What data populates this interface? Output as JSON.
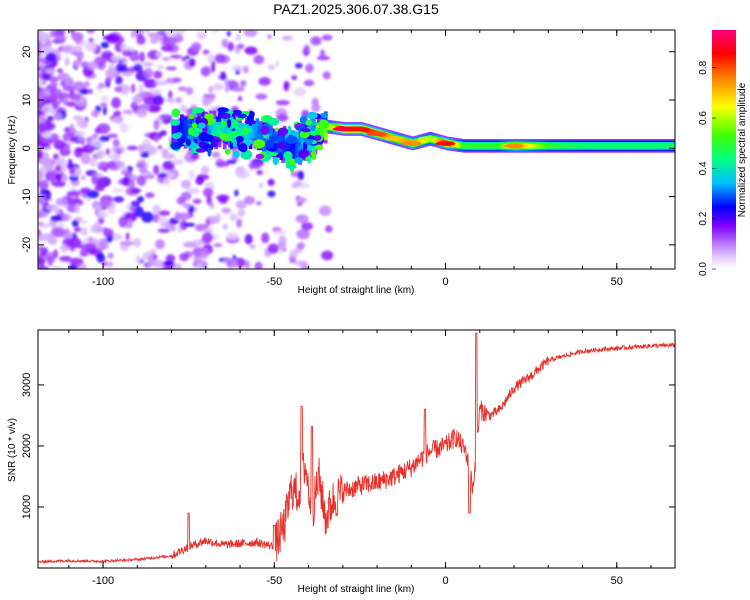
{
  "title": "PAZ1.2025.306.07.38.G15",
  "chart_data": [
    {
      "type": "heatmap",
      "xlabel": "Height of straight line (km)",
      "ylabel": "Frequency (Hz)",
      "xlim": [
        -119,
        67
      ],
      "ylim": [
        -25,
        24.5
      ],
      "xticks": [
        -100,
        -50,
        0,
        50
      ],
      "xtick_labels": [
        "-100",
        "-50",
        "0",
        "50"
      ],
      "yticks": [
        -20,
        -10,
        0,
        10,
        20
      ],
      "ytick_labels": [
        "-20",
        "-10",
        "0",
        "10",
        "20"
      ],
      "colorbar": {
        "label": "Normalized spectral amplitude",
        "range": [
          0,
          0.95
        ],
        "ticks": [
          0,
          0.2,
          0.4,
          0.6,
          0.8
        ],
        "tick_labels": [
          "0.0",
          "0.2",
          "0.4",
          "0.6",
          "0.8"
        ],
        "colors": [
          "#ffffff",
          "#c080ff",
          "#8000ff",
          "#0000ff",
          "#00c0ff",
          "#00ff80",
          "#40ff00",
          "#ffff00",
          "#ff8000",
          "#ff0000",
          "#ff0080"
        ]
      },
      "ridge": {
        "x": [
          -80,
          -75,
          -70,
          -65,
          -60,
          -55,
          -50,
          -45,
          -40,
          -35,
          -30,
          -25,
          -20,
          -15,
          -10,
          -5,
          0,
          5,
          10,
          15,
          20,
          30,
          40,
          50,
          60,
          67
        ],
        "freq": [
          3,
          3.5,
          3.5,
          4,
          3,
          3,
          1.5,
          0,
          2,
          4.5,
          4,
          4,
          3,
          2,
          1,
          2,
          1,
          0.5,
          0.5,
          0.5,
          0.5,
          0.5,
          0.5,
          0.5,
          0.5,
          0.5
        ],
        "peak_amplitude": [
          0.2,
          0.3,
          0.3,
          0.5,
          0.4,
          0.3,
          0.3,
          0.25,
          0.4,
          0.6,
          0.9,
          0.85,
          0.8,
          0.7,
          0.75,
          0.6,
          0.85,
          0.5,
          0.5,
          0.5,
          0.75,
          0.5,
          0.45,
          0.45,
          0.45,
          0.45
        ]
      },
      "noise_region": "x from -119 to -40 km: scattered low-amplitude (0.05-0.25) speckle across all frequencies"
    },
    {
      "type": "line",
      "xlabel": "Height of straight line (km)",
      "ylabel": "SNR (10 * v/v)",
      "xlim": [
        -119,
        67
      ],
      "ylim": [
        0,
        3900
      ],
      "xticks": [
        -100,
        -50,
        0,
        50
      ],
      "xtick_labels": [
        "-100",
        "-50",
        "0",
        "50"
      ],
      "yticks": [
        1000,
        2000,
        3000
      ],
      "ytick_labels": [
        "1000",
        "2000",
        "3000"
      ],
      "color": "#e8302a",
      "series": [
        {
          "name": "SNR",
          "x": [
            -119,
            -110,
            -100,
            -90,
            -80,
            -75,
            -70,
            -65,
            -60,
            -55,
            -50,
            -47,
            -45,
            -43,
            -41,
            -39,
            -37,
            -35,
            -33,
            -30,
            -25,
            -20,
            -15,
            -10,
            -5,
            0,
            3,
            6,
            8,
            10,
            13,
            16,
            20,
            25,
            30,
            35,
            40,
            45,
            50,
            55,
            60,
            67
          ],
          "y": [
            100,
            120,
            110,
            140,
            200,
            350,
            450,
            380,
            400,
            420,
            350,
            700,
            1300,
            1200,
            1700,
            900,
            1500,
            800,
            1100,
            1250,
            1350,
            1400,
            1500,
            1650,
            1900,
            2000,
            2150,
            1900,
            1300,
            2600,
            2500,
            2600,
            2950,
            3150,
            3400,
            3480,
            3550,
            3580,
            3600,
            3620,
            3640,
            3650
          ],
          "spikes": [
            {
              "x": -75,
              "y": 900
            },
            {
              "x": -50,
              "y": 700
            },
            {
              "x": -42,
              "y": 2650
            },
            {
              "x": -39,
              "y": 2320
            },
            {
              "x": -6,
              "y": 2600
            },
            {
              "x": 9,
              "y": 3850
            }
          ],
          "dips": [
            {
              "x": 7,
              "y": 900
            }
          ]
        }
      ]
    }
  ]
}
